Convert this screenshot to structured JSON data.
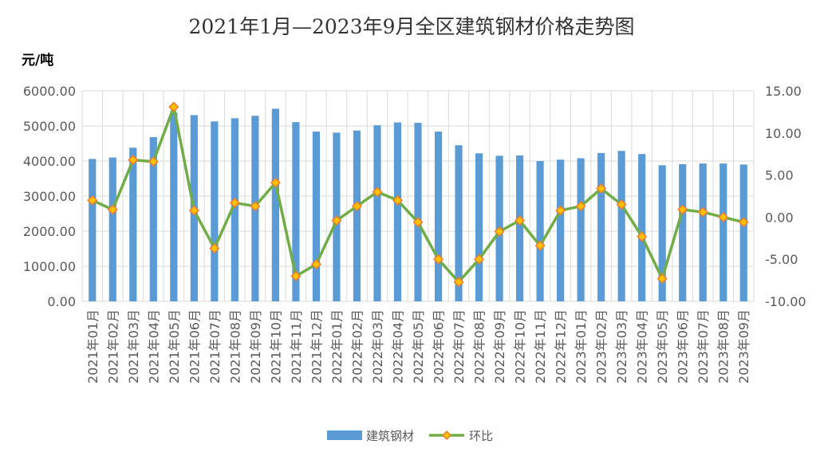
{
  "chart_data": {
    "type": "bar",
    "title": "2021年1月—2023年9月全区建筑钢材价格走势图",
    "ylabel": "元/吨",
    "categories": [
      "2021年01月",
      "2021年02月",
      "2021年03月",
      "2021年04月",
      "2021年05月",
      "2021年06月",
      "2021年07月",
      "2021年08月",
      "2021年09月",
      "2021年10月",
      "2021年11月",
      "2021年12月",
      "2022年01月",
      "2022年02月",
      "2022年03月",
      "2022年04月",
      "2022年05月",
      "2022年06月",
      "2022年07月",
      "2022年08月",
      "2022年09月",
      "2022年10月",
      "2022年11月",
      "2022年12月",
      "2023年01月",
      "2023年02月",
      "2023年03月",
      "2023年04月",
      "2023年05月",
      "2023年06月",
      "2023年07月",
      "2023年08月",
      "2023年09月"
    ],
    "ylim": [
      0,
      6000
    ],
    "y2lim": [
      -10,
      15
    ],
    "y_ticks": [
      "0.00",
      "1000.00",
      "2000.00",
      "3000.00",
      "4000.00",
      "5000.00",
      "6000.00"
    ],
    "y2_ticks": [
      "-10.00",
      "-5.00",
      "0.00",
      "5.00",
      "10.00",
      "15.00"
    ],
    "grid": true,
    "legend_position": "bottom",
    "series": [
      {
        "name": "建筑钢材",
        "type": "bar",
        "axis": "left",
        "color": "#5b9bd5",
        "values": [
          4060,
          4100,
          4380,
          4680,
          5380,
          5310,
          5130,
          5220,
          5290,
          5490,
          5110,
          4840,
          4810,
          4870,
          5020,
          5100,
          5090,
          4840,
          4450,
          4220,
          4150,
          4160,
          4000,
          4040,
          4080,
          4230,
          4290,
          4200,
          3880,
          3910,
          3930,
          3930,
          3900
        ]
      },
      {
        "name": "环比",
        "type": "line",
        "axis": "right",
        "color": "#70ad47",
        "marker_color": "#ffc000",
        "values": [
          2.0,
          0.9,
          6.8,
          6.6,
          13.1,
          0.8,
          -3.7,
          1.7,
          1.3,
          4.1,
          -7.0,
          -5.6,
          -0.4,
          1.3,
          3.0,
          2.0,
          -0.6,
          -5.0,
          -7.7,
          -5.0,
          -1.7,
          -0.4,
          -3.4,
          0.8,
          1.3,
          3.4,
          1.5,
          -2.3,
          -7.3,
          0.9,
          0.6,
          0.0,
          -0.6
        ]
      }
    ]
  }
}
